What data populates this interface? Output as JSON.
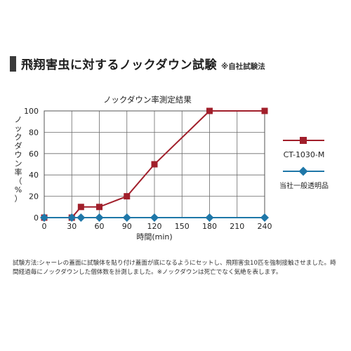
{
  "header": {
    "title": "飛翔害虫に対するノックダウン試験",
    "note": "※自社試験法",
    "bar_color": "#3a3a3a"
  },
  "chart_data": {
    "type": "line",
    "title": "ノックダウン率測定結果",
    "xlabel": "時間(min)",
    "ylabel": "ノックダウン率（%）",
    "xlim": [
      0,
      240
    ],
    "ylim": [
      0,
      100
    ],
    "xticks": [
      0,
      30,
      60,
      90,
      120,
      150,
      180,
      210,
      240
    ],
    "yticks": [
      0,
      20,
      40,
      60,
      80,
      100
    ],
    "grid": true,
    "legend_position": "right",
    "series": [
      {
        "name": "CT-1030-M",
        "color": "#a11f2b",
        "marker": "square",
        "x": [
          0,
          30,
          40,
          60,
          90,
          120,
          180,
          240
        ],
        "y": [
          0,
          0,
          10,
          10,
          20,
          50,
          100,
          100
        ]
      },
      {
        "name": "当社一般透明品",
        "color": "#1f77a8",
        "marker": "diamond",
        "x": [
          0,
          30,
          40,
          60,
          90,
          120,
          180,
          240
        ],
        "y": [
          0,
          0,
          0,
          0,
          0,
          0,
          0,
          0
        ]
      }
    ]
  },
  "footnote": "試験方法:シャーレの蓋面に試験体を貼り付け蓋面が底になるようにセットし、飛翔害虫10匹を強制接触させました。時間経過毎にノックダウンした個体数を計測しました。※ノックダウンは死亡でなく気絶を表します。"
}
